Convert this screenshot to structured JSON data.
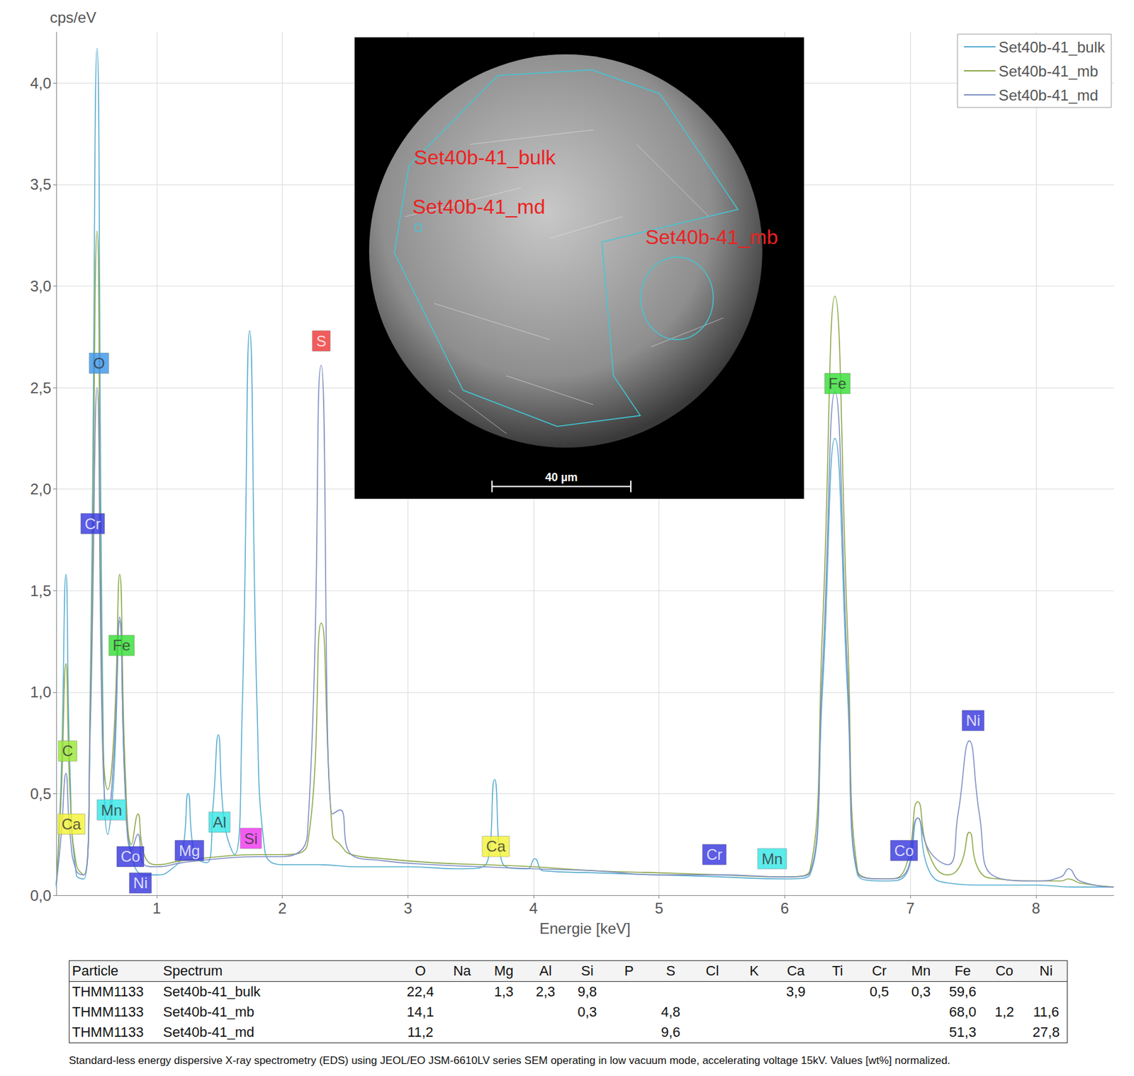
{
  "chart_data": {
    "type": "line",
    "y_label": "cps/eV",
    "x_label": "Energie [keV]",
    "xlim": [
      0.2,
      8.62
    ],
    "xticks": [
      1,
      2,
      3,
      4,
      5,
      6,
      7,
      8
    ],
    "ylim": [
      0,
      4.25
    ],
    "yticks": [
      {
        "value": 0,
        "label": "0,0"
      },
      {
        "value": 0.5,
        "label": "0,5"
      },
      {
        "value": 1,
        "label": "1,0"
      },
      {
        "value": 1.5,
        "label": "1,5"
      },
      {
        "value": 2,
        "label": "2,0"
      },
      {
        "value": 2.5,
        "label": "2,5"
      },
      {
        "value": 3,
        "label": "3,0"
      },
      {
        "value": 3.5,
        "label": "3,5"
      },
      {
        "value": 4,
        "label": "4,0"
      }
    ],
    "grid": true,
    "legend": "top-right",
    "series": [
      {
        "name": "Set40b-41_bulk",
        "color": "#5aaed0",
        "x": [
          0.2,
          0.24,
          0.277,
          0.31,
          0.36,
          0.42,
          0.47,
          0.525,
          0.57,
          0.61,
          0.66,
          0.705,
          0.75,
          0.8,
          0.9,
          1.0,
          1.1,
          1.2,
          1.25,
          1.3,
          1.4,
          1.45,
          1.49,
          1.54,
          1.62,
          1.68,
          1.74,
          1.8,
          1.86,
          2.0,
          2.3,
          2.6,
          3.0,
          3.4,
          3.62,
          3.69,
          3.76,
          3.95,
          4.01,
          4.08,
          4.5,
          5.0,
          5.5,
          6.0,
          6.2,
          6.3,
          6.4,
          6.5,
          6.58,
          6.8,
          6.95,
          7.06,
          7.15,
          7.3,
          7.6,
          8.0,
          8.3,
          8.62
        ],
        "values": [
          0.04,
          0.6,
          1.58,
          0.6,
          0.1,
          0.08,
          1.0,
          4.17,
          1.0,
          0.3,
          0.6,
          1.35,
          0.5,
          0.2,
          0.1,
          0.1,
          0.12,
          0.2,
          0.5,
          0.2,
          0.16,
          0.45,
          0.79,
          0.35,
          0.2,
          0.9,
          2.78,
          0.9,
          0.22,
          0.15,
          0.15,
          0.14,
          0.14,
          0.13,
          0.15,
          0.57,
          0.15,
          0.13,
          0.18,
          0.12,
          0.11,
          0.1,
          0.09,
          0.08,
          0.1,
          1.0,
          2.25,
          1.0,
          0.1,
          0.07,
          0.09,
          0.38,
          0.12,
          0.06,
          0.05,
          0.05,
          0.04,
          0.04
        ]
      },
      {
        "name": "Set40b-41_mb",
        "color": "#8ea84a",
        "x": [
          0.2,
          0.24,
          0.277,
          0.31,
          0.36,
          0.42,
          0.47,
          0.525,
          0.57,
          0.61,
          0.66,
          0.705,
          0.75,
          0.8,
          0.85,
          0.9,
          1.0,
          1.2,
          1.5,
          1.8,
          2.0,
          2.2,
          2.31,
          2.4,
          2.46,
          2.55,
          2.8,
          3.2,
          3.6,
          4.0,
          4.5,
          5.0,
          5.5,
          6.0,
          6.2,
          6.3,
          6.4,
          6.5,
          6.58,
          6.8,
          6.95,
          7.06,
          7.15,
          7.3,
          7.4,
          7.47,
          7.55,
          7.7,
          8.0,
          8.2,
          8.26,
          8.35,
          8.62
        ],
        "values": [
          0.05,
          0.5,
          1.14,
          0.5,
          0.15,
          0.1,
          0.9,
          3.27,
          0.8,
          0.52,
          0.8,
          1.58,
          0.6,
          0.25,
          0.4,
          0.2,
          0.15,
          0.17,
          0.19,
          0.2,
          0.2,
          0.25,
          1.34,
          0.3,
          0.25,
          0.2,
          0.18,
          0.16,
          0.15,
          0.14,
          0.12,
          0.11,
          0.1,
          0.09,
          0.12,
          1.3,
          2.95,
          1.3,
          0.12,
          0.08,
          0.12,
          0.46,
          0.2,
          0.1,
          0.15,
          0.31,
          0.12,
          0.08,
          0.07,
          0.07,
          0.08,
          0.06,
          0.04
        ]
      },
      {
        "name": "Set40b-41_md",
        "color": "#7f8fc3",
        "x": [
          0.2,
          0.24,
          0.277,
          0.31,
          0.36,
          0.42,
          0.47,
          0.525,
          0.57,
          0.61,
          0.66,
          0.705,
          0.75,
          0.8,
          0.85,
          0.9,
          1.0,
          1.2,
          1.5,
          1.8,
          2.0,
          2.2,
          2.31,
          2.4,
          2.46,
          2.55,
          2.8,
          3.2,
          3.6,
          4.0,
          4.5,
          5.0,
          5.5,
          6.0,
          6.2,
          6.3,
          6.4,
          6.5,
          6.58,
          6.8,
          6.95,
          7.06,
          7.15,
          7.3,
          7.38,
          7.47,
          7.55,
          7.65,
          8.0,
          8.2,
          8.26,
          8.35,
          8.62
        ],
        "values": [
          0.05,
          0.3,
          0.6,
          0.3,
          0.12,
          0.1,
          0.8,
          2.5,
          0.7,
          0.4,
          0.7,
          1.37,
          0.5,
          0.22,
          0.3,
          0.15,
          0.14,
          0.16,
          0.18,
          0.19,
          0.19,
          0.3,
          2.61,
          0.4,
          0.42,
          0.2,
          0.17,
          0.15,
          0.14,
          0.13,
          0.12,
          0.1,
          0.1,
          0.09,
          0.11,
          1.1,
          2.48,
          1.1,
          0.11,
          0.08,
          0.1,
          0.38,
          0.22,
          0.15,
          0.4,
          0.76,
          0.4,
          0.1,
          0.07,
          0.09,
          0.13,
          0.07,
          0.04
        ]
      }
    ],
    "annotations": [
      {
        "text": "O",
        "x": 0.54,
        "y": 2.62,
        "color": "#3a94e8"
      },
      {
        "text": "Cr",
        "x": 0.49,
        "y": 1.83,
        "color": "#3333dd"
      },
      {
        "text": "Fe",
        "x": 0.72,
        "y": 1.23,
        "color": "#33dd33"
      },
      {
        "text": "C",
        "x": 0.29,
        "y": 0.71,
        "color": "#99e633"
      },
      {
        "text": "Mn",
        "x": 0.64,
        "y": 0.42,
        "color": "#33e6e6"
      },
      {
        "text": "Ca",
        "x": 0.32,
        "y": 0.35,
        "color": "#f2f233"
      },
      {
        "text": "Co",
        "x": 0.79,
        "y": 0.19,
        "color": "#3333dd"
      },
      {
        "text": "Ni",
        "x": 0.87,
        "y": 0.06,
        "color": "#3333dd"
      },
      {
        "text": "Mg",
        "x": 1.26,
        "y": 0.22,
        "color": "#3333dd"
      },
      {
        "text": "Al",
        "x": 1.5,
        "y": 0.36,
        "color": "#33e6e6"
      },
      {
        "text": "Si",
        "x": 1.75,
        "y": 0.28,
        "color": "#ee33ee"
      },
      {
        "text": "S",
        "x": 2.31,
        "y": 2.73,
        "color": "#ee3333"
      },
      {
        "text": "Ca",
        "x": 3.7,
        "y": 0.24,
        "color": "#f2f233"
      },
      {
        "text": "Cr",
        "x": 5.44,
        "y": 0.2,
        "color": "#3333dd"
      },
      {
        "text": "Mn",
        "x": 5.9,
        "y": 0.18,
        "color": "#33e6e6"
      },
      {
        "text": "Fe",
        "x": 6.42,
        "y": 2.52,
        "color": "#33dd33"
      },
      {
        "text": "Co",
        "x": 6.95,
        "y": 0.22,
        "color": "#3333dd"
      },
      {
        "text": "Ni",
        "x": 7.5,
        "y": 0.86,
        "color": "#3333dd"
      }
    ]
  },
  "inset": {
    "labels": [
      "Set40b-41_bulk",
      "Set40b-41_md",
      "Set40b-41_mb"
    ],
    "scale_bar": "40 µm"
  },
  "table": {
    "columns": [
      "Particle",
      "Spectrum",
      "O",
      "Na",
      "Mg",
      "Al",
      "Si",
      "P",
      "S",
      "Cl",
      "K",
      "Ca",
      "Ti",
      "Cr",
      "Mn",
      "Fe",
      "Co",
      "Ni"
    ],
    "rows": [
      [
        "THMM1133",
        "Set40b-41_bulk",
        "22,4",
        null,
        "1,3",
        "2,3",
        "9,8",
        null,
        null,
        null,
        null,
        "3,9",
        null,
        "0,5",
        "0,3",
        "59,6",
        null,
        null
      ],
      [
        "THMM1133",
        "Set40b-41_mb",
        "14,1",
        null,
        null,
        null,
        "0,3",
        null,
        "4,8",
        null,
        null,
        null,
        null,
        null,
        null,
        "68,0",
        "1,2",
        "11,6"
      ],
      [
        "THMM1133",
        "Set40b-41_md",
        "11,2",
        null,
        null,
        null,
        null,
        null,
        "9,6",
        null,
        null,
        null,
        null,
        null,
        null,
        "51,3",
        null,
        "27,8"
      ]
    ]
  },
  "footnote": "Standard-less energy dispersive X-ray spectrometry (EDS) using JEOL/EO JSM-6610LV series SEM operating in low vacuum mode, accelerating voltage 15kV. Values [wt%] normalized."
}
